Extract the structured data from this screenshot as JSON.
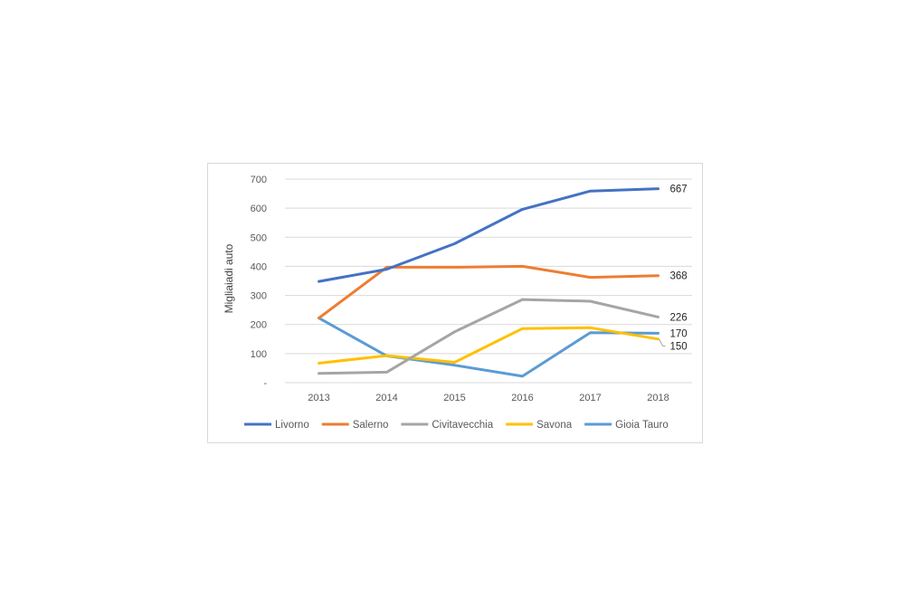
{
  "chart_data": {
    "type": "line",
    "title": "",
    "xlabel": "",
    "ylabel": "Migliaiadi auto",
    "ylim": [
      0,
      700
    ],
    "y_ticks": [
      0,
      100,
      200,
      300,
      400,
      500,
      600,
      700
    ],
    "y_tick_labels": [
      "-",
      "100",
      "200",
      "300",
      "400",
      "500",
      "600",
      "700"
    ],
    "categories": [
      "2013",
      "2014",
      "2015",
      "2016",
      "2017",
      "2018"
    ],
    "grid": true,
    "legend_position": "bottom",
    "series": [
      {
        "name": "Livorno",
        "color": "#4472c4",
        "values": [
          348,
          390,
          478,
          596,
          659,
          667
        ],
        "end_label": "667"
      },
      {
        "name": "Salerno",
        "color": "#ed7d31",
        "values": [
          222,
          397,
          397,
          400,
          362,
          368
        ],
        "end_label": "368"
      },
      {
        "name": "Civitavecchia",
        "color": "#a5a5a5",
        "values": [
          32,
          36,
          175,
          286,
          280,
          226
        ],
        "end_label": "226"
      },
      {
        "name": "Savona",
        "color": "#ffc000",
        "values": [
          67,
          93,
          70,
          186,
          189,
          150
        ],
        "end_label": "150"
      },
      {
        "name": "Gioia Tauro",
        "color": "#5b9bd5",
        "values": [
          222,
          92,
          60,
          22,
          172,
          170
        ],
        "end_label": "170"
      }
    ]
  }
}
